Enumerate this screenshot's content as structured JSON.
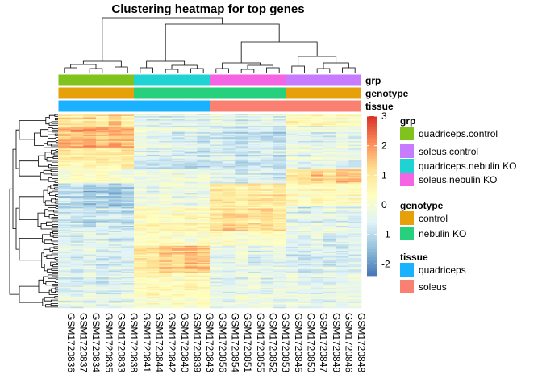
{
  "chart_data": {
    "type": "heatmap",
    "title": "Clustering heatmap for top genes",
    "columns": [
      "GSM1720836",
      "GSM1720837",
      "GSM1720834",
      "GSM1720835",
      "GSM1720833",
      "GSM1720838",
      "GSM1720841",
      "GSM1720844",
      "GSM1720842",
      "GSM1720840",
      "GSM1720839",
      "GSM1720843",
      "GSM1720856",
      "GSM1720854",
      "GSM1720851",
      "GSM1720855",
      "GSM1720852",
      "GSM1720853",
      "GSM1720845",
      "GSM1720850",
      "GSM1720847",
      "GSM1720849",
      "GSM1720846",
      "GSM1720848"
    ],
    "annotation_tracks": [
      {
        "name": "grp",
        "values": [
          "quadriceps.control",
          "quadriceps.control",
          "quadriceps.control",
          "quadriceps.control",
          "quadriceps.control",
          "quadriceps.control",
          "quadriceps.nebulin KO",
          "quadriceps.nebulin KO",
          "quadriceps.nebulin KO",
          "quadriceps.nebulin KO",
          "quadriceps.nebulin KO",
          "quadriceps.nebulin KO",
          "soleus.nebulin KO",
          "soleus.nebulin KO",
          "soleus.nebulin KO",
          "soleus.nebulin KO",
          "soleus.nebulin KO",
          "soleus.nebulin KO",
          "soleus.control",
          "soleus.control",
          "soleus.control",
          "soleus.control",
          "soleus.control",
          "soleus.control"
        ]
      },
      {
        "name": "genotype",
        "values": [
          "control",
          "control",
          "control",
          "control",
          "control",
          "control",
          "nebulin KO",
          "nebulin KO",
          "nebulin KO",
          "nebulin KO",
          "nebulin KO",
          "nebulin KO",
          "nebulin KO",
          "nebulin KO",
          "nebulin KO",
          "nebulin KO",
          "nebulin KO",
          "nebulin KO",
          "control",
          "control",
          "control",
          "control",
          "control",
          "control"
        ]
      },
      {
        "name": "tissue",
        "values": [
          "quadriceps",
          "quadriceps",
          "quadriceps",
          "quadriceps",
          "quadriceps",
          "quadriceps",
          "quadriceps",
          "quadriceps",
          "quadriceps",
          "quadriceps",
          "quadriceps",
          "quadriceps",
          "soleus",
          "soleus",
          "soleus",
          "soleus",
          "soleus",
          "soleus",
          "soleus",
          "soleus",
          "soleus",
          "soleus",
          "soleus",
          "soleus"
        ]
      }
    ],
    "legends": [
      {
        "title": "grp",
        "items": [
          {
            "label": "quadriceps.control",
            "color": "#7FC31C"
          },
          {
            "label": "soleus.control",
            "color": "#C77CFF"
          },
          {
            "label": "quadriceps.nebulin KO",
            "color": "#1FD3D3"
          },
          {
            "label": "soleus.nebulin KO",
            "color": "#F564E3"
          }
        ]
      },
      {
        "title": "genotype",
        "items": [
          {
            "label": "control",
            "color": "#E6A10A"
          },
          {
            "label": "nebulin KO",
            "color": "#26D07C"
          }
        ]
      },
      {
        "title": "tissue",
        "items": [
          {
            "label": "quadriceps",
            "color": "#1AB2FF"
          },
          {
            "label": "soleus",
            "color": "#FA8072"
          }
        ]
      }
    ],
    "color_scale": {
      "ticks": [
        3,
        2,
        1,
        0,
        -1,
        -2
      ],
      "min": -2.4,
      "max": 3.0,
      "colors": [
        "#4575B4",
        "#91BFDB",
        "#E0F3F8",
        "#FFFFBF",
        "#FEE090",
        "#FC8D59",
        "#D73027"
      ]
    },
    "row_blocks": [
      {
        "rows": 10,
        "values": [
          0.9,
          0.9,
          1.2,
          0.8,
          1.4,
          0.9,
          -0.4,
          -0.6,
          -0.5,
          -0.6,
          -0.5,
          -0.6,
          -0.3,
          -0.4,
          -0.5,
          -0.4,
          -0.3,
          -0.5,
          0.6,
          0.5,
          0.5,
          0.4,
          0.4,
          0.5
        ]
      },
      {
        "rows": 18,
        "values": [
          1.5,
          1.6,
          1.7,
          1.5,
          1.7,
          1.5,
          -0.2,
          -0.5,
          -0.4,
          -0.6,
          -0.5,
          -0.7,
          -0.8,
          -0.9,
          -1.1,
          -0.9,
          -1.0,
          -1.0,
          -0.4,
          -0.5,
          -0.5,
          -0.6,
          -0.4,
          -0.5
        ]
      },
      {
        "rows": 16,
        "values": [
          0.8,
          0.7,
          0.9,
          0.8,
          0.7,
          1.0,
          -0.5,
          -0.7,
          -0.8,
          -0.6,
          -0.9,
          -0.8,
          -0.6,
          -0.7,
          -0.8,
          -0.7,
          -0.6,
          -0.8,
          -0.2,
          -0.4,
          -0.3,
          -0.2,
          -0.3,
          -0.4
        ]
      },
      {
        "rows": 12,
        "values": [
          0.0,
          0.2,
          0.1,
          0.3,
          0.1,
          0.0,
          -0.2,
          -0.3,
          -0.2,
          -0.1,
          -0.3,
          -0.2,
          -0.5,
          -0.6,
          -0.8,
          -0.5,
          -0.6,
          -0.7,
          0.9,
          1.0,
          1.4,
          1.2,
          1.7,
          1.5
        ]
      },
      {
        "rows": 18,
        "values": [
          -1.0,
          -1.1,
          -1.3,
          -1.2,
          -1.5,
          -1.2,
          -0.2,
          -0.3,
          -0.1,
          -0.2,
          -0.3,
          -0.2,
          0.8,
          0.9,
          0.7,
          1.0,
          0.8,
          0.9,
          0.4,
          0.3,
          0.5,
          0.4,
          0.3,
          0.4
        ]
      },
      {
        "rows": 20,
        "values": [
          -0.8,
          -0.9,
          -1.0,
          -0.8,
          -0.9,
          -1.0,
          0.4,
          0.5,
          0.3,
          0.4,
          0.5,
          0.4,
          0.9,
          1.2,
          1.0,
          0.9,
          1.1,
          0.8,
          -0.4,
          -0.6,
          -0.5,
          -0.4,
          -0.5,
          -0.6
        ]
      },
      {
        "rows": 12,
        "values": [
          -0.4,
          -0.5,
          -0.3,
          -0.4,
          -0.6,
          -0.5,
          0.2,
          0.3,
          0.4,
          0.3,
          0.2,
          0.3,
          0.3,
          0.4,
          0.2,
          0.3,
          0.4,
          0.3,
          -0.3,
          -0.4,
          -0.3,
          -0.5,
          -0.4,
          -0.3
        ]
      },
      {
        "rows": 22,
        "values": [
          -0.6,
          -0.7,
          -0.5,
          -0.8,
          -0.6,
          -0.7,
          1.0,
          0.9,
          1.4,
          1.2,
          1.5,
          1.3,
          -0.4,
          -0.5,
          -0.3,
          -0.6,
          -0.5,
          -0.4,
          -0.7,
          -0.8,
          -0.6,
          -0.7,
          -0.8,
          -0.6
        ]
      },
      {
        "rows": 18,
        "values": [
          -0.5,
          -0.6,
          -0.5,
          -0.7,
          -0.6,
          -0.5,
          0.4,
          0.5,
          0.4,
          0.3,
          0.5,
          0.4,
          -0.4,
          -0.5,
          -0.4,
          -0.3,
          -0.5,
          -0.4,
          -0.3,
          -0.4,
          -0.5,
          -0.4,
          -0.3,
          -0.4
        ]
      },
      {
        "rows": 10,
        "values": [
          -0.3,
          -0.4,
          -0.3,
          -0.5,
          -0.4,
          -0.3,
          0.1,
          0.2,
          0.1,
          0.2,
          0.1,
          0.2,
          -0.2,
          -0.3,
          -0.2,
          -0.3,
          -0.2,
          -0.3,
          -0.4,
          -0.3,
          -0.5,
          -0.4,
          -0.3,
          -0.4
        ]
      }
    ]
  }
}
